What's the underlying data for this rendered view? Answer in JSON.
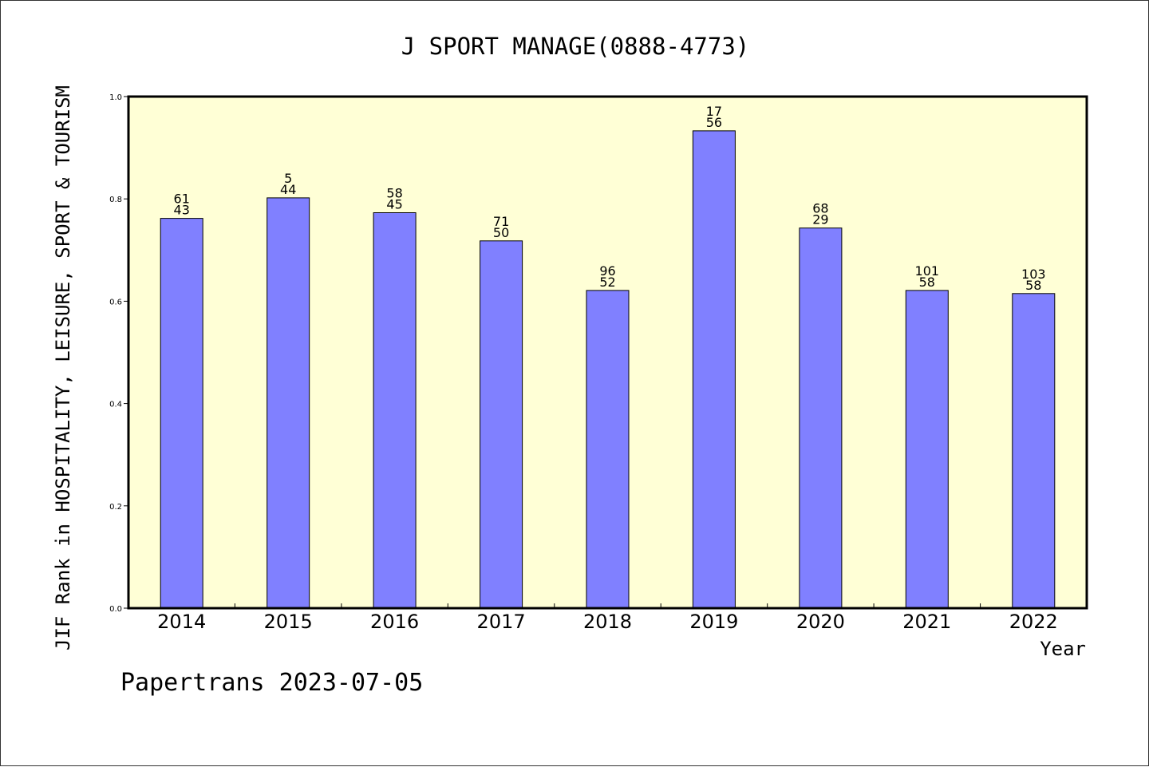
{
  "chart_data": {
    "type": "bar",
    "title": "J SPORT MANAGE(0888-4773)",
    "xlabel": "Year",
    "ylabel": "JIF Rank in HOSPITALITY, LEISURE, SPORT & TOURISM",
    "categories": [
      "2014",
      "2015",
      "2016",
      "2017",
      "2018",
      "2019",
      "2020",
      "2021",
      "2022"
    ],
    "values": [
      0.762,
      0.802,
      0.773,
      0.718,
      0.621,
      0.933,
      0.743,
      0.621,
      0.615
    ],
    "label_top": [
      "61",
      "5",
      "58",
      "71",
      "96",
      "17",
      "68",
      "101",
      "103"
    ],
    "label_bottom": [
      "43",
      "44",
      "45",
      "50",
      "52",
      "56",
      "29",
      "58",
      "58"
    ],
    "ylim": [
      0,
      1.0
    ],
    "yticks": [
      "0.0",
      "0.2",
      "0.4",
      "0.6",
      "0.8",
      "1.0"
    ],
    "grid": false,
    "colors": {
      "bar": "#8080ff",
      "plot_background": "#ffffd6",
      "axis": "#000000"
    }
  },
  "footer": {
    "credit": "Papertrans 2023-07-05"
  }
}
